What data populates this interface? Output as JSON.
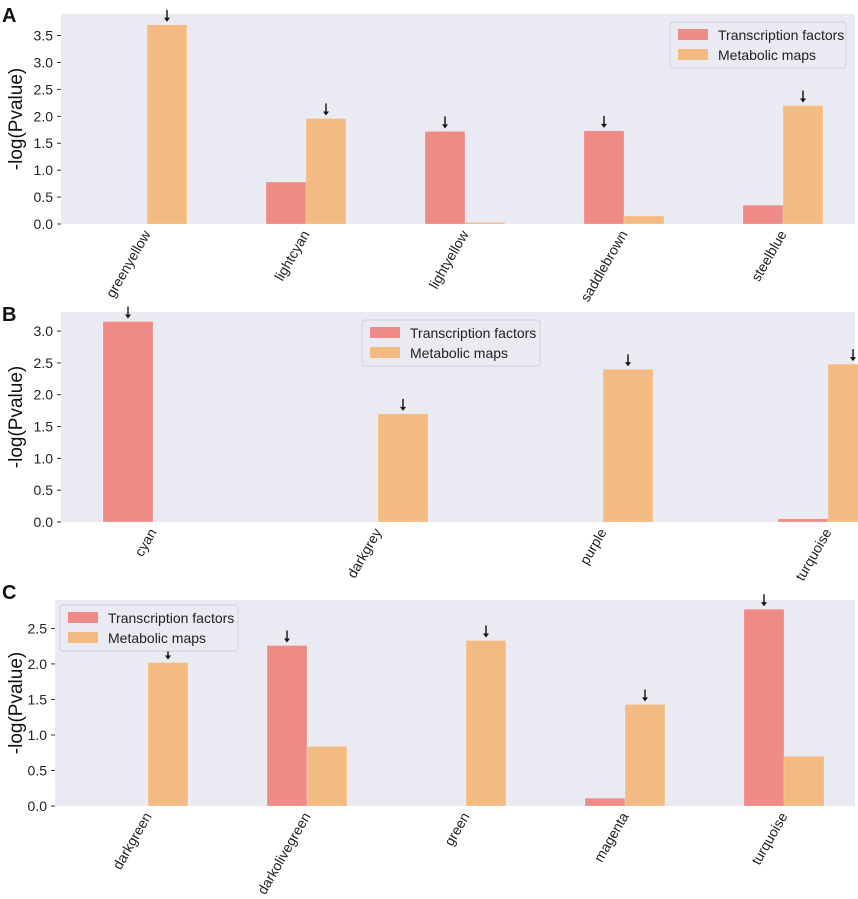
{
  "colors": {
    "plot_bg": "#eaeaf2",
    "transcription": "#ee8b87",
    "metabolic": "#f3bb82",
    "arrow": "#111111"
  },
  "chart_data": [
    {
      "panel_label": "A",
      "type": "bar",
      "ylabel": "-log(Pvalue)",
      "ylim": [
        0,
        3.9
      ],
      "yticks": [
        0.0,
        0.5,
        1.0,
        1.5,
        2.0,
        2.5,
        3.0,
        3.5
      ],
      "ytick_labels": [
        "0.0",
        "0.5",
        "1.0",
        "1.5",
        "2.0",
        "2.5",
        "3.0",
        "3.5"
      ],
      "legend_position": "top-right",
      "categories": [
        "greenyellow",
        "lightcyan",
        "lightyellow",
        "saddlebrown",
        "steelblue"
      ],
      "series": [
        {
          "name": "Transcription factors",
          "values": [
            0,
            0.78,
            1.72,
            1.73,
            0.35
          ]
        },
        {
          "name": "Metabolic maps",
          "values": [
            3.7,
            1.96,
            0.03,
            0.15,
            2.2
          ]
        }
      ],
      "arrows_on": [
        [
          1,
          0
        ],
        [
          1,
          1
        ],
        [
          0,
          2
        ],
        [
          0,
          3
        ],
        [
          1,
          4
        ]
      ]
    },
    {
      "panel_label": "B",
      "type": "bar",
      "ylabel": "-log(Pvalue)",
      "ylim": [
        0,
        3.3
      ],
      "yticks": [
        0.0,
        0.5,
        1.0,
        1.5,
        2.0,
        2.5,
        3.0
      ],
      "ytick_labels": [
        "0.0",
        "0.5",
        "1.0",
        "1.5",
        "2.0",
        "2.5",
        "3.0"
      ],
      "legend_position": "top-center",
      "categories": [
        "cyan",
        "darkgrey",
        "purple",
        "turquoise"
      ],
      "series": [
        {
          "name": "Transcription factors",
          "values": [
            3.15,
            0,
            0,
            0.05
          ]
        },
        {
          "name": "Metabolic maps",
          "values": [
            0,
            1.7,
            2.4,
            2.48
          ]
        }
      ],
      "arrows_on": [
        [
          0,
          0
        ],
        [
          1,
          1
        ],
        [
          1,
          2
        ],
        [
          1,
          3
        ]
      ]
    },
    {
      "panel_label": "C",
      "type": "bar",
      "ylabel": "-log(Pvalue)",
      "ylim": [
        0,
        2.9
      ],
      "yticks": [
        0.0,
        0.5,
        1.0,
        1.5,
        2.0,
        2.5
      ],
      "ytick_labels": [
        "0.0",
        "0.5",
        "1.0",
        "1.5",
        "2.0",
        "2.5"
      ],
      "legend_position": "top-left",
      "categories": [
        "darkgreen",
        "darkolivegreen",
        "green",
        "magenta",
        "turquoise"
      ],
      "series": [
        {
          "name": "Transcription factors",
          "values": [
            0,
            2.26,
            0,
            0.11,
            2.77
          ]
        },
        {
          "name": "Metabolic maps",
          "values": [
            2.02,
            0.84,
            2.33,
            1.43,
            0.7
          ]
        }
      ],
      "arrows_on": [
        [
          1,
          0
        ],
        [
          0,
          1
        ],
        [
          1,
          2
        ],
        [
          1,
          3
        ],
        [
          0,
          4
        ]
      ]
    }
  ]
}
